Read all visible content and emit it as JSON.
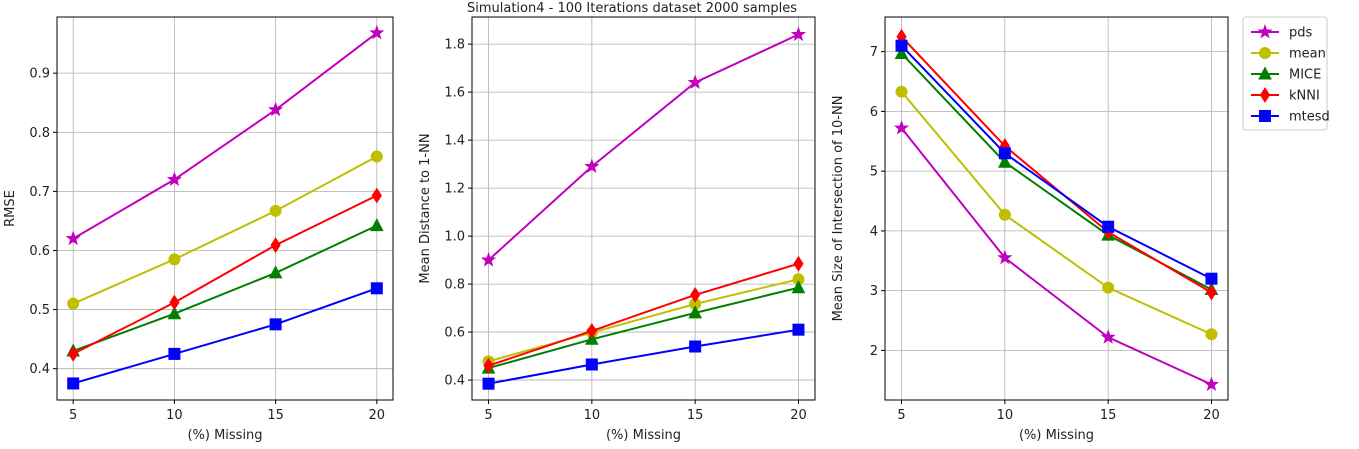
{
  "figure": {
    "title": "Simulation4 - 100 Iterations dataset 2000 samples"
  },
  "legend": {
    "placement": "outside-right-top",
    "entries": [
      {
        "name": "pds",
        "color": "#bf00bf",
        "marker": "star"
      },
      {
        "name": "mean",
        "color": "#bfbf00",
        "marker": "circle"
      },
      {
        "name": "MICE",
        "color": "#008000",
        "marker": "triangle"
      },
      {
        "name": "kNNI",
        "color": "#ff0000",
        "marker": "thin-diamond"
      },
      {
        "name": "mtesd",
        "color": "#0000ff",
        "marker": "square"
      }
    ]
  },
  "chart_data": [
    {
      "type": "line",
      "xlabel": "(%) Missing",
      "ylabel": "RMSE",
      "x": [
        5,
        10,
        15,
        20
      ],
      "xticks": [
        5,
        10,
        15,
        20
      ],
      "xlim": [
        4.2,
        20.8
      ],
      "yticks": [
        0.4,
        0.5,
        0.6,
        0.7,
        0.8,
        0.9
      ],
      "ylim": [
        0.347,
        0.995
      ],
      "grid": true,
      "series": [
        {
          "name": "pds",
          "values": [
            0.62,
            0.72,
            0.838,
            0.968
          ]
        },
        {
          "name": "mean",
          "values": [
            0.51,
            0.585,
            0.667,
            0.759
          ]
        },
        {
          "name": "MICE",
          "values": [
            0.43,
            0.493,
            0.562,
            0.642
          ]
        },
        {
          "name": "kNNI",
          "values": [
            0.425,
            0.512,
            0.609,
            0.693
          ]
        },
        {
          "name": "mtesd",
          "values": [
            0.375,
            0.425,
            0.475,
            0.536
          ]
        }
      ]
    },
    {
      "type": "line",
      "xlabel": "(%) Missing",
      "ylabel": "Mean Distance to 1-NN",
      "x": [
        5,
        10,
        15,
        20
      ],
      "xticks": [
        5,
        10,
        15,
        20
      ],
      "xlim": [
        4.2,
        20.8
      ],
      "yticks": [
        0.4,
        0.6,
        0.8,
        1.0,
        1.2,
        1.4,
        1.6,
        1.8
      ],
      "ylim": [
        0.317,
        1.913
      ],
      "grid": true,
      "series": [
        {
          "name": "pds",
          "values": [
            0.9,
            1.29,
            1.64,
            1.84
          ]
        },
        {
          "name": "mean",
          "values": [
            0.478,
            0.598,
            0.717,
            0.82
          ]
        },
        {
          "name": "MICE",
          "values": [
            0.45,
            0.57,
            0.68,
            0.785
          ]
        },
        {
          "name": "kNNI",
          "values": [
            0.46,
            0.605,
            0.755,
            0.885
          ]
        },
        {
          "name": "mtesd",
          "values": [
            0.385,
            0.465,
            0.54,
            0.61
          ]
        }
      ]
    },
    {
      "type": "line",
      "xlabel": "(%) Missing",
      "ylabel": "Mean Size of Intersection of 10-NN",
      "x": [
        5,
        10,
        15,
        20
      ],
      "xticks": [
        5,
        10,
        15,
        20
      ],
      "xlim": [
        4.2,
        20.8
      ],
      "yticks": [
        2,
        3,
        4,
        5,
        6,
        7
      ],
      "ylim": [
        1.17,
        7.58
      ],
      "grid": true,
      "series": [
        {
          "name": "pds",
          "values": [
            5.72,
            3.55,
            2.22,
            1.43
          ]
        },
        {
          "name": "mean",
          "values": [
            6.33,
            4.27,
            3.05,
            2.27
          ]
        },
        {
          "name": "MICE",
          "values": [
            6.97,
            5.15,
            3.93,
            3.02
          ]
        },
        {
          "name": "kNNI",
          "values": [
            7.25,
            5.42,
            3.98,
            2.97
          ]
        },
        {
          "name": "mtesd",
          "values": [
            7.1,
            5.3,
            4.07,
            3.2
          ]
        }
      ]
    }
  ]
}
